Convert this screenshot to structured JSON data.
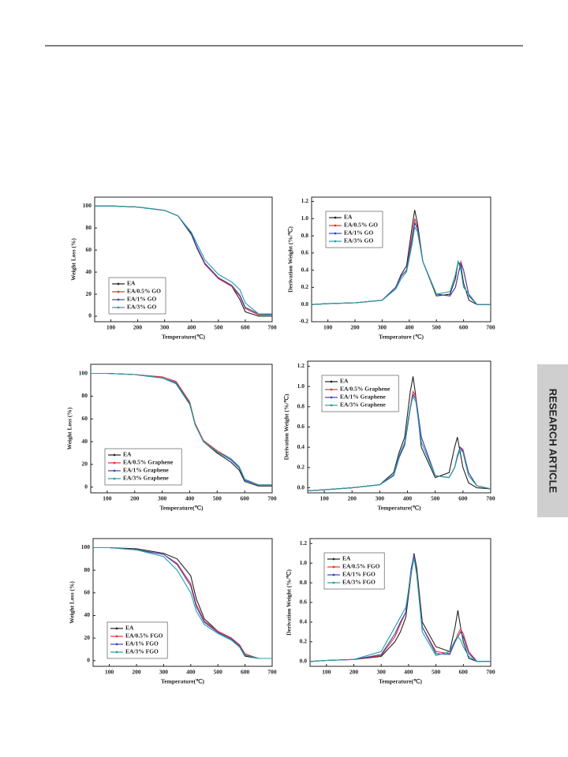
{
  "side_label": "RESEARCH ARTICLE",
  "chart_data": [
    {
      "type": "line",
      "xlabel": "Temperature(℃)",
      "ylabel": "Weight Loss (%)",
      "legend": "lower left",
      "x": [
        40,
        100,
        200,
        300,
        350,
        400,
        420,
        450,
        500,
        550,
        580,
        600,
        650,
        700
      ],
      "xlim": [
        40,
        700
      ],
      "xticks": [
        100,
        200,
        300,
        400,
        500,
        600,
        700
      ],
      "ylim": [
        -5,
        108
      ],
      "yticks": [
        0,
        20,
        40,
        60,
        80,
        100
      ],
      "series": [
        {
          "name": "EA",
          "color": "#222222",
          "values": [
            100,
            100,
            99,
            96,
            91,
            74,
            62,
            47,
            35,
            27,
            15,
            4,
            0,
            0
          ]
        },
        {
          "name": "EA/0.5% GO",
          "color": "#e83030",
          "values": [
            100,
            100,
            99,
            96,
            91,
            75,
            63,
            47,
            34,
            27,
            18,
            7,
            1,
            1
          ]
        },
        {
          "name": "EA/1% GO",
          "color": "#4040c0",
          "values": [
            100,
            100,
            99,
            96,
            91,
            75,
            63,
            48,
            35,
            28,
            19,
            8,
            2,
            2
          ]
        },
        {
          "name": "EA/3% GO",
          "color": "#20a0a0",
          "values": [
            100,
            100,
            99,
            96,
            91,
            76,
            66,
            51,
            38,
            31,
            24,
            12,
            2,
            1
          ]
        }
      ]
    },
    {
      "type": "line",
      "xlabel": "Temperature (℃)",
      "ylabel": "Derivation Weight (%/℃)",
      "legend": "upper left",
      "x": [
        40,
        100,
        200,
        300,
        350,
        370,
        390,
        410,
        420,
        430,
        450,
        500,
        550,
        570,
        580,
        590,
        600,
        620,
        650,
        700
      ],
      "xlim": [
        40,
        700
      ],
      "xticks": [
        100,
        200,
        300,
        400,
        500,
        600,
        700
      ],
      "ylim": [
        -0.2,
        1.25
      ],
      "yticks": [
        -0.2,
        {
          "value": 0,
          "label": "0.0"
        },
        0.2,
        0.4,
        0.6,
        0.8,
        {
          "value": 1,
          "label": "1.0"
        },
        1.2
      ],
      "series": [
        {
          "name": "EA",
          "color": "#222222",
          "values": [
            0,
            0.01,
            0.02,
            0.05,
            0.2,
            0.35,
            0.45,
            0.9,
            1.1,
            0.95,
            0.5,
            0.1,
            0.12,
            0.3,
            0.5,
            0.45,
            0.25,
            0.05,
            0,
            0
          ]
        },
        {
          "name": "EA/0.5% GO",
          "color": "#e83030",
          "values": [
            0,
            0.01,
            0.02,
            0.05,
            0.2,
            0.33,
            0.4,
            0.8,
            1.0,
            0.9,
            0.5,
            0.12,
            0.1,
            0.2,
            0.35,
            0.5,
            0.4,
            0.1,
            0,
            0
          ]
        },
        {
          "name": "EA/1% GO",
          "color": "#4040c0",
          "values": [
            0,
            0.01,
            0.02,
            0.05,
            0.2,
            0.33,
            0.4,
            0.75,
            0.95,
            0.88,
            0.5,
            0.12,
            0.1,
            0.2,
            0.35,
            0.48,
            0.4,
            0.1,
            0,
            0
          ]
        },
        {
          "name": "EA/3% GO",
          "color": "#20a0a0",
          "values": [
            0,
            0.01,
            0.02,
            0.05,
            0.18,
            0.3,
            0.38,
            0.7,
            0.9,
            0.85,
            0.5,
            0.12,
            0.15,
            0.35,
            0.5,
            0.4,
            0.2,
            0.12,
            0,
            0
          ]
        }
      ]
    },
    {
      "type": "line",
      "xlabel": "Temperature(℃)",
      "ylabel": "Weight Loss (%)",
      "legend": "lower left",
      "x": [
        40,
        100,
        200,
        300,
        350,
        400,
        420,
        450,
        500,
        550,
        580,
        600,
        650,
        700
      ],
      "xlim": [
        40,
        700
      ],
      "xticks": [
        100,
        200,
        300,
        400,
        500,
        600,
        700
      ],
      "ylim": [
        -5,
        108
      ],
      "yticks": [
        0,
        20,
        40,
        60,
        80,
        100
      ],
      "series": [
        {
          "name": "EA",
          "color": "#222222",
          "values": [
            100,
            100,
            99,
            96,
            91,
            73,
            55,
            40,
            30,
            22,
            15,
            5,
            1,
            1
          ]
        },
        {
          "name": "EA/0.5% Graphene",
          "color": "#e83030",
          "values": [
            100,
            100,
            99,
            97,
            93,
            75,
            56,
            41,
            32,
            25,
            18,
            7,
            2,
            2
          ]
        },
        {
          "name": "EA/1% Graphene",
          "color": "#4040c0",
          "values": [
            100,
            100,
            99,
            96,
            92,
            74,
            55,
            40,
            31,
            24,
            17,
            6,
            2,
            2
          ]
        },
        {
          "name": "EA/3% Graphene",
          "color": "#20a0a0",
          "values": [
            100,
            100,
            99,
            96,
            91,
            74,
            55,
            40,
            31,
            25,
            18,
            7,
            2,
            2
          ]
        }
      ]
    },
    {
      "type": "line",
      "xlabel": "Temperature(℃)",
      "ylabel": "Derivation Weight (%/℃)",
      "legend": "upper left",
      "x": [
        40,
        100,
        200,
        300,
        350,
        370,
        390,
        410,
        420,
        430,
        450,
        500,
        550,
        570,
        580,
        590,
        600,
        620,
        650,
        700
      ],
      "xlim": [
        40,
        700
      ],
      "xticks": [
        100,
        200,
        300,
        400,
        500,
        600,
        700
      ],
      "ylim": [
        -0.05,
        1.25
      ],
      "yticks": [
        {
          "value": 0,
          "label": "0.0"
        },
        0.2,
        0.4,
        0.6,
        0.8,
        {
          "value": 1,
          "label": "1.0"
        },
        1.2
      ],
      "series": [
        {
          "name": "EA",
          "color": "#222222",
          "values": [
            -0.03,
            -0.02,
            0,
            0.03,
            0.15,
            0.35,
            0.5,
            0.95,
            1.1,
            0.9,
            0.4,
            0.1,
            0.15,
            0.4,
            0.5,
            0.35,
            0.2,
            0.05,
            0,
            -0.01
          ]
        },
        {
          "name": "EA/0.5% Graphene",
          "color": "#e83030",
          "values": [
            -0.03,
            -0.02,
            0,
            0.03,
            0.12,
            0.3,
            0.45,
            0.8,
            0.95,
            0.9,
            0.5,
            0.12,
            0.1,
            0.2,
            0.3,
            0.4,
            0.38,
            0.15,
            0.02,
            -0.01
          ]
        },
        {
          "name": "EA/1% Graphene",
          "color": "#4040c0",
          "values": [
            -0.03,
            -0.02,
            0,
            0.03,
            0.12,
            0.3,
            0.42,
            0.78,
            0.92,
            0.88,
            0.5,
            0.12,
            0.1,
            0.2,
            0.32,
            0.4,
            0.36,
            0.15,
            0.02,
            -0.01
          ]
        },
        {
          "name": "EA/3% Graphene",
          "color": "#20a0a0",
          "values": [
            -0.03,
            -0.02,
            0,
            0.03,
            0.13,
            0.32,
            0.45,
            0.8,
            0.9,
            0.85,
            0.45,
            0.12,
            0.1,
            0.2,
            0.3,
            0.38,
            0.35,
            0.12,
            0.02,
            -0.01
          ]
        }
      ]
    },
    {
      "type": "line",
      "xlabel": "Temperature(℃)",
      "ylabel": "Weight Loss (%)",
      "legend": "lower left",
      "x": [
        40,
        100,
        200,
        300,
        350,
        400,
        420,
        450,
        500,
        550,
        580,
        600,
        650,
        700
      ],
      "xlim": [
        40,
        700
      ],
      "xticks": [
        100,
        200,
        300,
        400,
        500,
        600,
        700
      ],
      "ylim": [
        -5,
        108
      ],
      "yticks": [
        0,
        20,
        40,
        60,
        80,
        100
      ],
      "series": [
        {
          "name": "EA",
          "color": "#222222",
          "values": [
            100,
            100,
            99,
            95,
            90,
            75,
            55,
            37,
            26,
            20,
            12,
            4,
            2,
            2
          ]
        },
        {
          "name": "EA/0.5% FGO",
          "color": "#e83030",
          "values": [
            100,
            100,
            98,
            94,
            86,
            68,
            50,
            35,
            26,
            20,
            14,
            6,
            2,
            2
          ]
        },
        {
          "name": "EA/1% FGO",
          "color": "#4040c0",
          "values": [
            100,
            100,
            98,
            94,
            85,
            66,
            48,
            34,
            25,
            19,
            13,
            5,
            2,
            2
          ]
        },
        {
          "name": "EA/3% FGO",
          "color": "#20a0a0",
          "values": [
            100,
            100,
            98,
            92,
            80,
            60,
            44,
            32,
            24,
            18,
            12,
            5,
            2,
            2
          ]
        }
      ]
    },
    {
      "type": "line",
      "xlabel": "Temperature(℃)",
      "ylabel": "Derivation Weight (%/℃)",
      "legend": "upper left",
      "x": [
        40,
        100,
        200,
        300,
        350,
        370,
        390,
        410,
        420,
        430,
        450,
        500,
        550,
        570,
        580,
        590,
        600,
        620,
        650,
        700
      ],
      "xlim": [
        40,
        700
      ],
      "xticks": [
        100,
        200,
        300,
        400,
        500,
        600,
        700
      ],
      "ylim": [
        -0.05,
        1.25
      ],
      "yticks": [
        {
          "value": 0,
          "label": "0.0"
        },
        0.2,
        0.4,
        0.6,
        0.8,
        {
          "value": 1,
          "label": "1.0"
        },
        1.2
      ],
      "series": [
        {
          "name": "EA",
          "color": "#222222",
          "values": [
            0,
            0.01,
            0.02,
            0.05,
            0.2,
            0.3,
            0.45,
            0.9,
            1.1,
            0.95,
            0.4,
            0.15,
            0.1,
            0.35,
            0.52,
            0.35,
            0.2,
            0.03,
            0,
            0
          ]
        },
        {
          "name": "EA/0.5% FGO",
          "color": "#e83030",
          "values": [
            0,
            0.01,
            0.02,
            0.06,
            0.25,
            0.38,
            0.5,
            0.95,
            1.08,
            0.9,
            0.35,
            0.1,
            0.08,
            0.2,
            0.28,
            0.33,
            0.28,
            0.1,
            0,
            0
          ]
        },
        {
          "name": "EA/1% FGO",
          "color": "#4040c0",
          "values": [
            0,
            0.01,
            0.02,
            0.07,
            0.28,
            0.4,
            0.5,
            0.95,
            1.08,
            0.88,
            0.35,
            0.08,
            0.07,
            0.2,
            0.25,
            0.3,
            0.25,
            0.08,
            0,
            0
          ]
        },
        {
          "name": "EA/3% FGO",
          "color": "#20a0a0",
          "values": [
            0,
            0.01,
            0.02,
            0.1,
            0.35,
            0.45,
            0.55,
            0.9,
            1.05,
            0.88,
            0.3,
            0.06,
            0.1,
            0.22,
            0.25,
            0.22,
            0.15,
            0.05,
            0,
            0
          ]
        }
      ]
    }
  ]
}
